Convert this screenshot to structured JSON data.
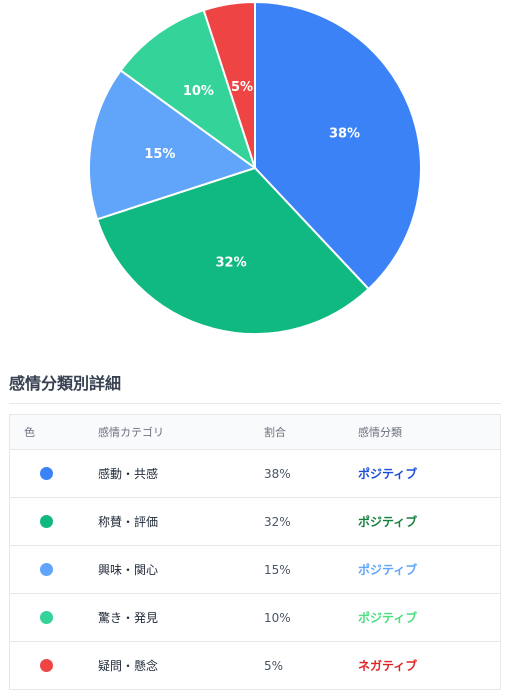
{
  "chart_data": {
    "type": "pie",
    "slices": [
      {
        "label": "感動・共感",
        "value": 38,
        "display": "38%",
        "color": "#3B82F6"
      },
      {
        "label": "称賛・評価",
        "value": 32,
        "display": "32%",
        "color": "#10B981"
      },
      {
        "label": "興味・関心",
        "value": 15,
        "display": "15%",
        "color": "#60A5FA"
      },
      {
        "label": "驚き・発見",
        "value": 10,
        "display": "10%",
        "color": "#34D399"
      },
      {
        "label": "疑問・懸念",
        "value": 5,
        "display": "5%",
        "color": "#EF4444"
      }
    ]
  },
  "section": {
    "title": "感情分類別詳細"
  },
  "table": {
    "headers": {
      "color": "色",
      "category": "感情カテゴリ",
      "ratio": "割合",
      "classification": "感情分類"
    },
    "rows": [
      {
        "category": "感動・共感",
        "ratio": "38%",
        "classification": "ポジティブ",
        "dot_color": "#3B82F6",
        "class_color": "#1D4ED8"
      },
      {
        "category": "称賛・評価",
        "ratio": "32%",
        "classification": "ポジティブ",
        "dot_color": "#10B981",
        "class_color": "#15803D"
      },
      {
        "category": "興味・関心",
        "ratio": "15%",
        "classification": "ポジティブ",
        "dot_color": "#60A5FA",
        "class_color": "#60A5FA"
      },
      {
        "category": "驚き・発見",
        "ratio": "10%",
        "classification": "ポジティブ",
        "dot_color": "#34D399",
        "class_color": "#4ADE80"
      },
      {
        "category": "疑問・懸念",
        "ratio": "5%",
        "classification": "ネガティブ",
        "dot_color": "#EF4444",
        "class_color": "#DC2626"
      }
    ]
  }
}
